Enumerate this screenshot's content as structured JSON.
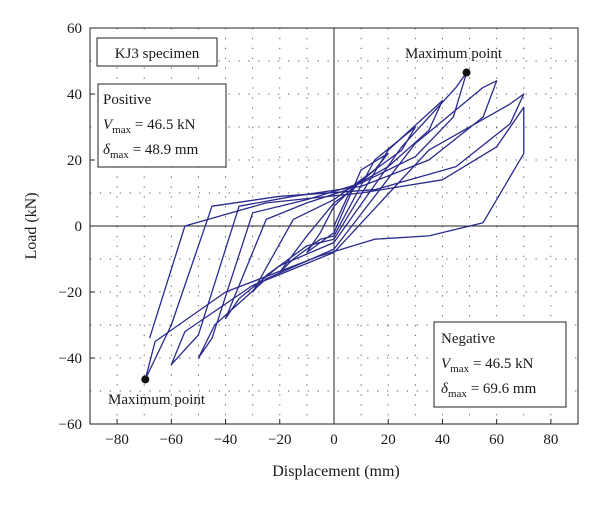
{
  "chart_data": {
    "type": "line",
    "title": "",
    "xlabel": "Displacement (mm)",
    "ylabel": "Load (kN)",
    "xlim": [
      -90,
      90
    ],
    "ylim": [
      -60,
      60
    ],
    "xticks": [
      -80,
      -60,
      -40,
      -20,
      0,
      20,
      40,
      60,
      80
    ],
    "yticks": [
      -60,
      -40,
      -20,
      0,
      20,
      40,
      60
    ],
    "xtick_labels": [
      "−80",
      "−60",
      "−40",
      "−20",
      "0",
      "20",
      "40",
      "60",
      "80"
    ],
    "ytick_labels": [
      "−60",
      "−40",
      "−20",
      "0",
      "20",
      "40",
      "60"
    ],
    "grid": "dotted",
    "line_color": "#2a2a8c",
    "max_point_color": "#111111",
    "specimen_label": "KJ3 specimen",
    "positive": {
      "label": "Positive",
      "v_label": "V",
      "v_sub": "max",
      "v_text": " = 46.5 kN",
      "d_label": "δ",
      "d_sub": "max",
      "d_text": " = 48.9 mm"
    },
    "negative": {
      "label": "Negative",
      "v_label": "V",
      "v_sub": "max",
      "v_text": " = 46.5 kN",
      "d_label": "δ",
      "d_sub": "max",
      "d_text": " = 69.6 mm"
    },
    "max_points": [
      {
        "label": "Maximum point",
        "x": 48.9,
        "y": 46.5
      },
      {
        "label": "Maximum point",
        "x": -69.6,
        "y": -46.5
      }
    ],
    "series": [
      {
        "name": "",
        "points": [
          [
            0,
            0
          ],
          [
            5,
            9
          ],
          [
            10,
            14
          ],
          [
            5,
            10
          ],
          [
            0,
            6
          ],
          [
            -5,
            -2
          ],
          [
            -10,
            -8
          ],
          [
            -5,
            -5
          ],
          [
            0,
            -2
          ]
        ]
      },
      {
        "name": "",
        "points": [
          [
            0,
            -2
          ],
          [
            10,
            17
          ],
          [
            20,
            22
          ],
          [
            15,
            17
          ],
          [
            5,
            10
          ],
          [
            0,
            7
          ],
          [
            -10,
            -3
          ],
          [
            -20,
            -14
          ],
          [
            -15,
            -10
          ],
          [
            -5,
            -4
          ],
          [
            0,
            -3
          ]
        ]
      },
      {
        "name": "",
        "points": [
          [
            0,
            -3
          ],
          [
            15,
            20
          ],
          [
            30,
            30
          ],
          [
            25,
            23
          ],
          [
            10,
            14
          ],
          [
            0,
            8
          ],
          [
            -15,
            2
          ],
          [
            -30,
            -20
          ],
          [
            -25,
            -15
          ],
          [
            -10,
            -6
          ],
          [
            0,
            -4
          ]
        ]
      },
      {
        "name": "",
        "points": [
          [
            0,
            -4
          ],
          [
            20,
            23
          ],
          [
            40,
            38
          ],
          [
            35,
            29
          ],
          [
            20,
            18
          ],
          [
            5,
            11
          ],
          [
            -10,
            7
          ],
          [
            -25,
            2
          ],
          [
            -40,
            -28
          ],
          [
            -35,
            -22
          ],
          [
            -20,
            -12
          ],
          [
            0,
            -5
          ]
        ]
      },
      {
        "name": "",
        "points": [
          [
            0,
            -5
          ],
          [
            25,
            24
          ],
          [
            45,
            42
          ],
          [
            48.9,
            46.5
          ],
          [
            44,
            33
          ],
          [
            30,
            21
          ],
          [
            10,
            13
          ],
          [
            -10,
            8
          ],
          [
            -30,
            4
          ],
          [
            -45,
            -34
          ],
          [
            -50,
            -40
          ],
          [
            -44,
            -30
          ],
          [
            -25,
            -16
          ],
          [
            0,
            -7
          ]
        ]
      },
      {
        "name": "",
        "points": [
          [
            0,
            -7
          ],
          [
            30,
            25
          ],
          [
            55,
            42
          ],
          [
            60,
            44
          ],
          [
            55,
            33
          ],
          [
            35,
            20
          ],
          [
            10,
            12
          ],
          [
            -15,
            9
          ],
          [
            -35,
            6
          ],
          [
            -50,
            -33
          ],
          [
            -60,
            -42
          ],
          [
            -55,
            -32
          ],
          [
            -30,
            -18
          ],
          [
            0,
            -8
          ]
        ]
      },
      {
        "name": "",
        "points": [
          [
            0,
            -8
          ],
          [
            35,
            23
          ],
          [
            65,
            37
          ],
          [
            70,
            40
          ],
          [
            65,
            31
          ],
          [
            45,
            18
          ],
          [
            15,
            11
          ],
          [
            -20,
            9
          ],
          [
            -45,
            6
          ],
          [
            -60,
            -30
          ],
          [
            -69.6,
            -46.5
          ],
          [
            -66,
            -35
          ],
          [
            -40,
            -20
          ],
          [
            -5,
            -9
          ],
          [
            15,
            -4
          ],
          [
            35,
            -3
          ],
          [
            55,
            1
          ],
          [
            70,
            22
          ],
          [
            70,
            36
          ],
          [
            60,
            24
          ],
          [
            40,
            14
          ],
          [
            10,
            10
          ],
          [
            -25,
            7
          ],
          [
            -55,
            0
          ],
          [
            -68,
            -34
          ]
        ]
      }
    ]
  }
}
